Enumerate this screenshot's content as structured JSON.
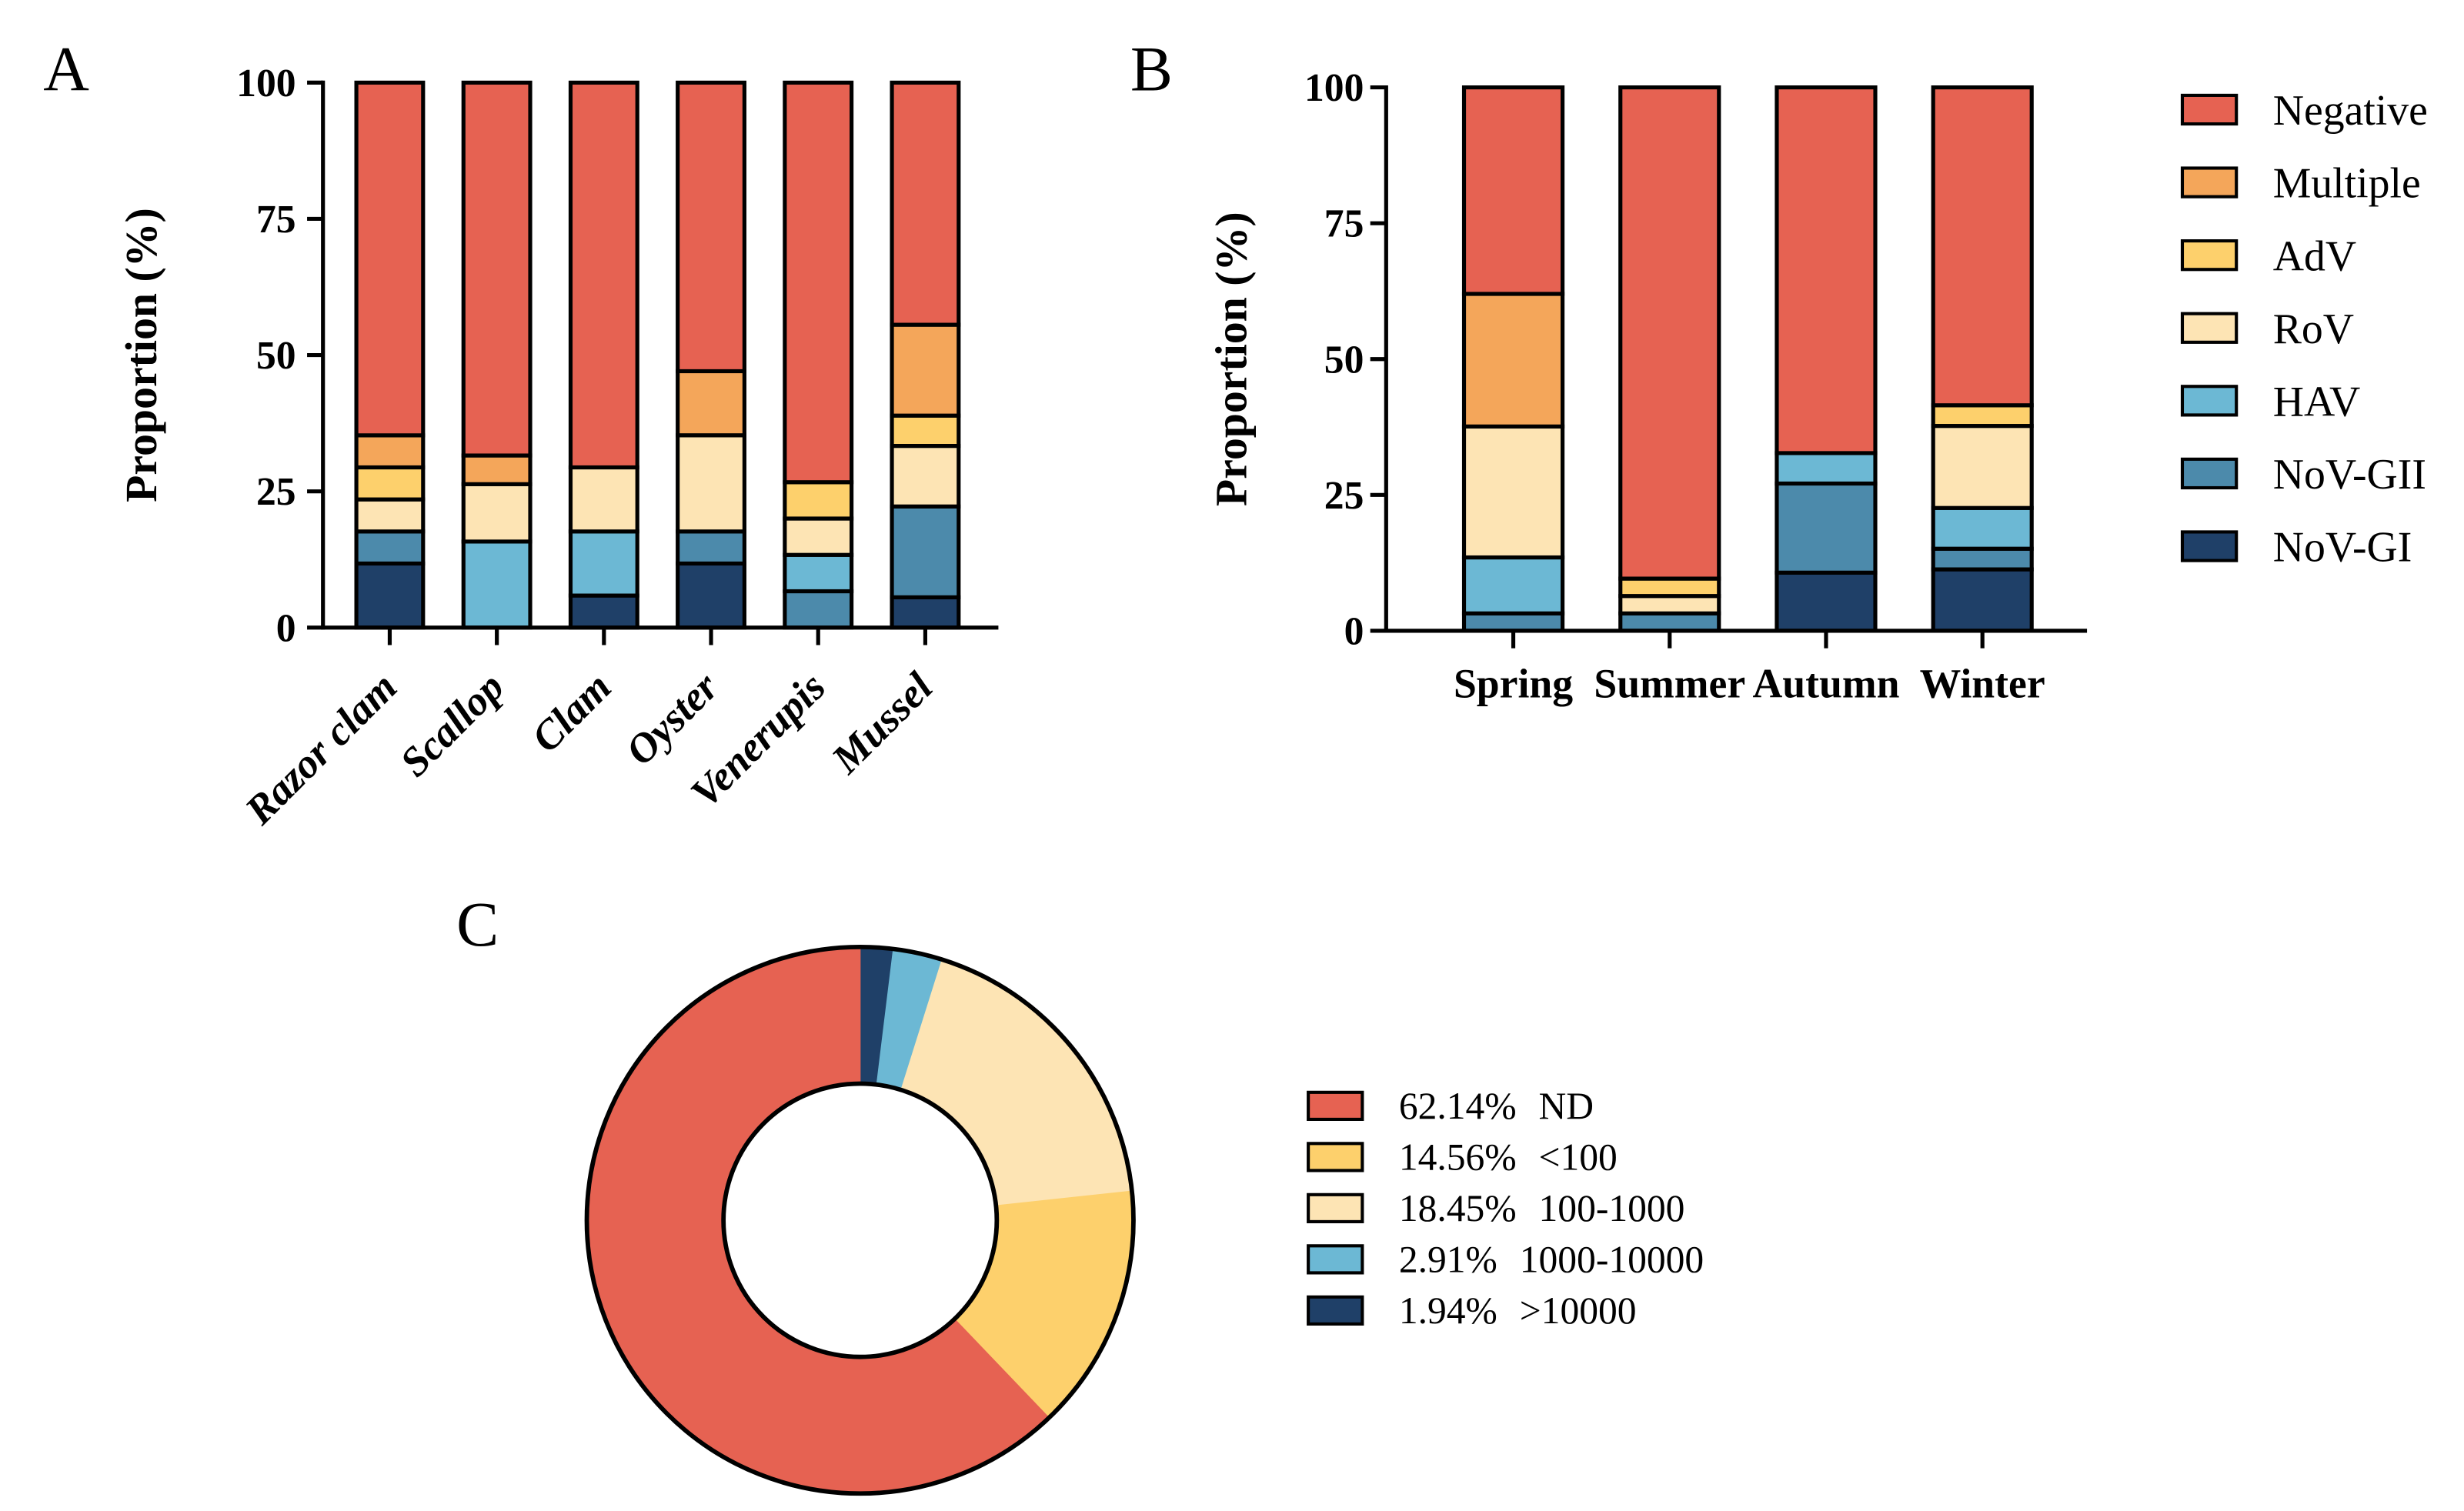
{
  "chart_data": [
    {
      "panel": "A",
      "type": "bar",
      "stacked": true,
      "ylabel": "Proportion (%)",
      "ylim": [
        0,
        100
      ],
      "yticks": [
        0,
        25,
        50,
        75,
        100
      ],
      "categories": [
        "Razor clam",
        "Scallop",
        "Clam",
        "Oyster",
        "Venerupis",
        "Mussel"
      ],
      "shared_series_with": 1,
      "series": [
        {
          "values": [
            11.76,
            0,
            5.88,
            11.76,
            0,
            5.56
          ]
        },
        {
          "values": [
            5.88,
            0,
            0,
            5.88,
            6.67,
            16.67
          ]
        },
        {
          "values": [
            0,
            15.79,
            11.76,
            0,
            6.67,
            0
          ]
        },
        {
          "values": [
            5.88,
            10.53,
            11.76,
            17.65,
            6.67,
            11.11
          ]
        },
        {
          "values": [
            5.88,
            0,
            0,
            0,
            6.67,
            5.56
          ]
        },
        {
          "values": [
            5.88,
            5.26,
            0,
            11.76,
            0,
            16.67
          ]
        },
        {
          "values": [
            64.72,
            68.42,
            70.6,
            52.95,
            73.32,
            44.43
          ]
        }
      ]
    },
    {
      "panel": "B",
      "type": "bar",
      "stacked": true,
      "ylabel": "Proportion (%)",
      "ylim": [
        0,
        100
      ],
      "yticks": [
        0,
        25,
        50,
        75,
        100
      ],
      "categories": [
        "Spring",
        "Summer",
        "Autumn",
        "Winter"
      ],
      "series": [
        {
          "name": "NoV-GI",
          "color": "#1F4068",
          "values": [
            0,
            0,
            10.7,
            11.3
          ]
        },
        {
          "name": "NoV-GII",
          "color": "#4C8AAB",
          "values": [
            3.2,
            3.2,
            16.4,
            3.8
          ]
        },
        {
          "name": "HAV",
          "color": "#6CB8D4",
          "values": [
            10.3,
            0,
            5.6,
            7.5
          ]
        },
        {
          "name": "RoV",
          "color": "#FDE4B4",
          "values": [
            24.1,
            3.2,
            0,
            15.1
          ]
        },
        {
          "name": "AdV",
          "color": "#FDD06C",
          "values": [
            0,
            3.2,
            0,
            3.8
          ]
        },
        {
          "name": "Multiple",
          "color": "#F4A65A",
          "values": [
            24.4,
            0,
            0,
            0
          ]
        },
        {
          "name": "Negative",
          "color": "#E66252",
          "values": [
            38.0,
            90.4,
            67.3,
            58.5
          ]
        }
      ]
    },
    {
      "panel": "C",
      "type": "pie",
      "donut": true,
      "slices": [
        {
          "label": "ND",
          "value": 62.14,
          "percent_label": "62.14%",
          "color": "#E66252"
        },
        {
          "label": "<100",
          "value": 14.56,
          "percent_label": "14.56%",
          "color": "#FDD06C"
        },
        {
          "label": "100-1000",
          "value": 18.45,
          "percent_label": "18.45%",
          "color": "#FDE4B4"
        },
        {
          "label": "1000-10000",
          "value": 2.91,
          "percent_label": "2.91%",
          "color": "#6CB8D4"
        },
        {
          "label": ">10000",
          "value": 1.94,
          "percent_label": "1.94%",
          "color": "#1F4068"
        }
      ]
    }
  ]
}
